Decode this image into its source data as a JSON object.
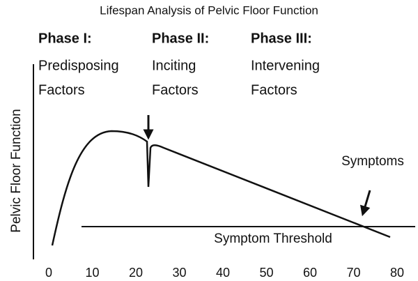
{
  "title": "Lifespan Analysis of Pelvic Floor Function",
  "y_axis_label": "Pelvic Floor Function",
  "phases": [
    {
      "name": "Phase I:",
      "lines": [
        "Predisposing",
        "Factors"
      ]
    },
    {
      "name": "Phase II:",
      "lines": [
        "Inciting",
        "Factors"
      ]
    },
    {
      "name": "Phase III:",
      "lines": [
        "Intervening",
        "Factors"
      ]
    }
  ],
  "annotations": {
    "symptoms": "Symptoms",
    "threshold": "Symptom Threshold"
  },
  "x_axis": {
    "xlim": [
      0,
      80
    ],
    "ticks": [
      0,
      10,
      20,
      30,
      40,
      50,
      60,
      70,
      80
    ]
  }
}
